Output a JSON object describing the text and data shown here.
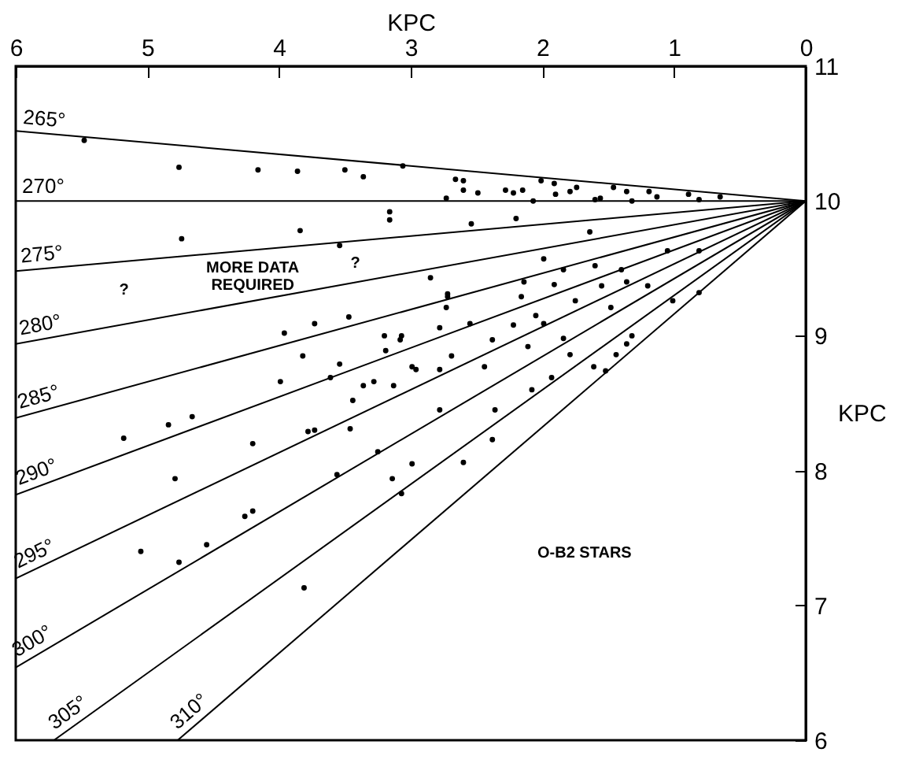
{
  "chart_data": {
    "type": "scatter",
    "xlabel": "KPC",
    "ylabel": "KPC",
    "xlim": [
      6,
      0
    ],
    "xticks": [
      6,
      5,
      4,
      3,
      2,
      1,
      0
    ],
    "ylim": [
      6,
      11
    ],
    "yticks": [
      6,
      7,
      8,
      9,
      10,
      11
    ],
    "grid": false,
    "annotations": [
      "MORE DATA\nREQUIRED",
      "?",
      "?",
      "O-B2 STARS"
    ],
    "series": [
      {
        "type": "line",
        "name": "265°",
        "color": "#000000",
        "x": [
          6,
          0
        ],
        "values": [
          10.52,
          10
        ]
      },
      {
        "type": "line",
        "name": "270°",
        "color": "#000000",
        "x": [
          6,
          0
        ],
        "values": [
          10,
          10
        ]
      },
      {
        "type": "line",
        "name": "275°",
        "color": "#000000",
        "x": [
          6,
          0
        ],
        "values": [
          9.48,
          10
        ]
      },
      {
        "type": "line",
        "name": "280°",
        "color": "#000000",
        "x": [
          6,
          0
        ],
        "values": [
          8.94,
          10
        ]
      },
      {
        "type": "line",
        "name": "285°",
        "color": "#000000",
        "x": [
          6,
          0
        ],
        "values": [
          8.39,
          10
        ]
      },
      {
        "type": "line",
        "name": "290°",
        "color": "#000000",
        "x": [
          6,
          0
        ],
        "values": [
          7.82,
          10
        ]
      },
      {
        "type": "line",
        "name": "295°",
        "color": "#000000",
        "x": [
          6,
          0
        ],
        "values": [
          7.2,
          10
        ]
      },
      {
        "type": "line",
        "name": "300°",
        "color": "#000000",
        "x": [
          6,
          0
        ],
        "values": [
          6.54,
          10
        ]
      },
      {
        "type": "line",
        "name": "305°",
        "color": "#000000",
        "x": [
          5.71,
          0
        ],
        "values": [
          6,
          10
        ]
      },
      {
        "type": "line",
        "name": "310°",
        "color": "#000000",
        "x": [
          4.77,
          0
        ],
        "values": [
          6,
          10
        ]
      },
      {
        "color": "#000000",
        "marker": "circle",
        "x": [
          5.48,
          4.76,
          4.16,
          3.86,
          3.5,
          3.36,
          3.06,
          2.66,
          2.6,
          2.73,
          2.28,
          2.15,
          2.01,
          1.9,
          1.74,
          1.56,
          1.46,
          1.32,
          1.19,
          0.89,
          0.65,
          2.07,
          3.16,
          3.16,
          4.74,
          3.84,
          3.54,
          2.72,
          2.73,
          3.96,
          3.73,
          3.47,
          3.2,
          3.08,
          3.19,
          3.82,
          3.99,
          3.61,
          3.54,
          3.36,
          3.28,
          3.44,
          3.13,
          2.96,
          2.78,
          2.78,
          4.66,
          4.84,
          5.18,
          4.2,
          3.78,
          3.46,
          3.25,
          2.6,
          2.49,
          2.22,
          1.91,
          1.79,
          1.6,
          1.36,
          1.13,
          0.81,
          2.54,
          2.2,
          1.64,
          1.99,
          1.84,
          1.6,
          1.4,
          1.05,
          0.81,
          2.85,
          2.14,
          1.91,
          1.55,
          1.36,
          1.2,
          2.72,
          2.16,
          1.75,
          1.48,
          1.01,
          0.81,
          2.05,
          1.99,
          2.22,
          2.78,
          2.55,
          2.38,
          2.11,
          1.84,
          1.32,
          3.07,
          2.99,
          2.44,
          2.69,
          1.79,
          1.44,
          1.36,
          2.36,
          2.08,
          1.93,
          1.61,
          2.38,
          2.6,
          1.52,
          3.73,
          2.99,
          3.14,
          3.07,
          3.56,
          4.79,
          4.26,
          4.2,
          4.55,
          4.76,
          5.05,
          3.81
        ],
        "values": [
          10.45,
          10.25,
          10.23,
          10.22,
          10.23,
          10.18,
          10.26,
          10.16,
          10.08,
          10.02,
          10.08,
          10.08,
          10.15,
          10.05,
          10.1,
          10.02,
          10.1,
          10,
          10.07,
          10.05,
          10.03,
          10,
          9.92,
          9.86,
          9.72,
          9.78,
          9.67,
          9.31,
          9.21,
          9.02,
          9.09,
          9.14,
          9,
          8.97,
          8.89,
          8.85,
          8.66,
          8.69,
          8.79,
          8.63,
          8.66,
          8.52,
          8.63,
          8.75,
          8.75,
          8.45,
          8.4,
          8.34,
          8.24,
          8.2,
          8.29,
          8.31,
          8.14,
          10.15,
          10.06,
          10.06,
          10.13,
          10.07,
          10.01,
          10.07,
          10.03,
          10.01,
          9.83,
          9.87,
          9.77,
          9.57,
          9.49,
          9.52,
          9.49,
          9.63,
          9.63,
          9.43,
          9.4,
          9.38,
          9.37,
          9.4,
          9.37,
          9.29,
          9.29,
          9.26,
          9.21,
          9.26,
          9.32,
          9.15,
          9.09,
          9.08,
          9.06,
          9.09,
          8.97,
          8.92,
          8.98,
          9,
          9,
          8.77,
          8.77,
          8.85,
          8.86,
          8.86,
          8.94,
          8.45,
          8.6,
          8.69,
          8.77,
          8.23,
          8.06,
          8.74,
          8.3,
          8.05,
          7.94,
          7.83,
          7.97,
          7.94,
          7.66,
          7.7,
          7.45,
          7.32,
          7.4,
          7.13
        ]
      }
    ]
  }
}
